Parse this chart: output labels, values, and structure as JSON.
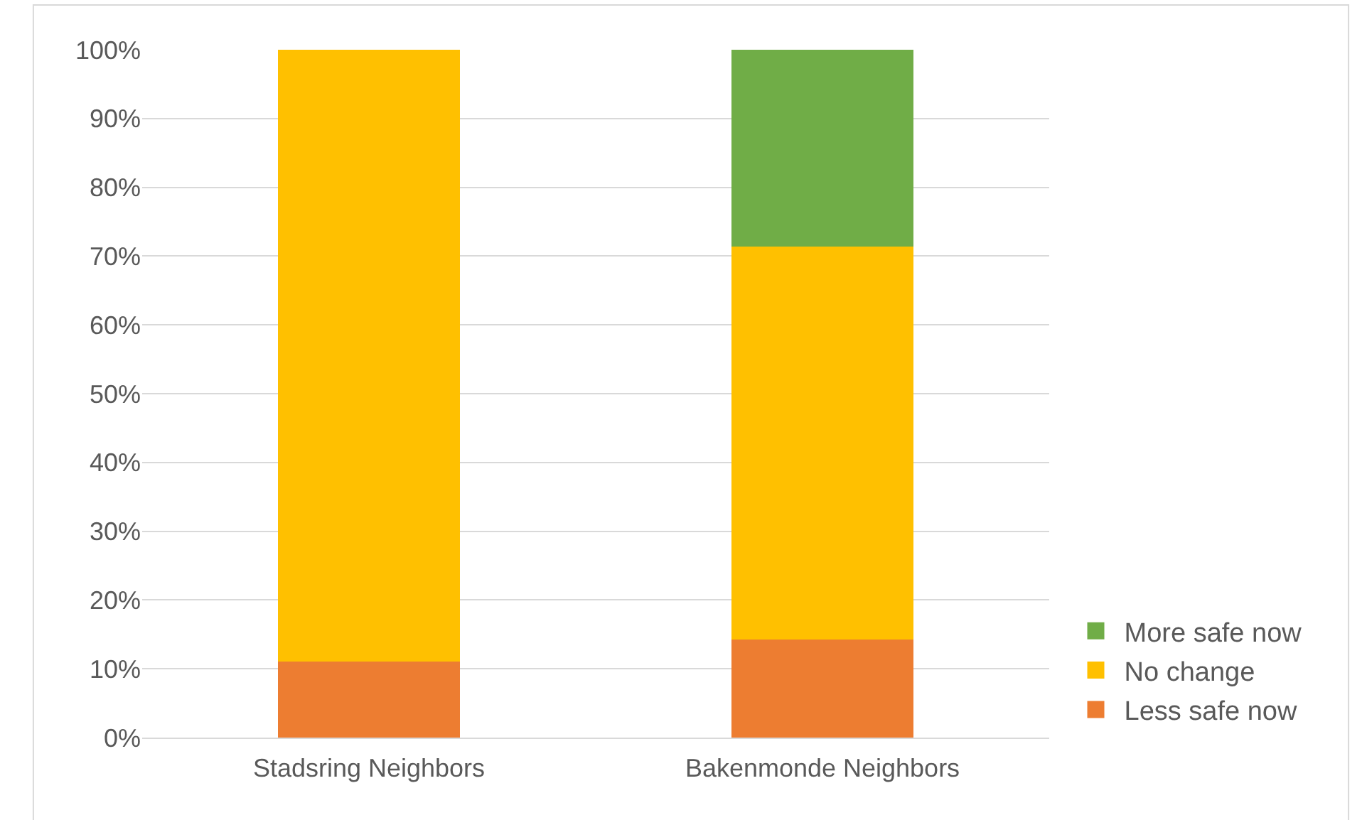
{
  "chart_data": {
    "type": "bar",
    "stacked": true,
    "categories": [
      "Stadsring Neighbors",
      "Bakenmonde Neighbors"
    ],
    "series": [
      {
        "name": "Less safe now",
        "color": "#ed7d31",
        "values": [
          11.1,
          14.3
        ]
      },
      {
        "name": "No change",
        "color": "#ffc000",
        "values": [
          88.9,
          57.1
        ]
      },
      {
        "name": "More safe now",
        "color": "#70ad47",
        "values": [
          0,
          28.6
        ]
      }
    ],
    "ylim": [
      0,
      100
    ],
    "yticks": [
      {
        "value": 0,
        "label": "0%"
      },
      {
        "value": 10,
        "label": "10%"
      },
      {
        "value": 20,
        "label": "20%"
      },
      {
        "value": 30,
        "label": "30%"
      },
      {
        "value": 40,
        "label": "40%"
      },
      {
        "value": 50,
        "label": "50%"
      },
      {
        "value": 60,
        "label": "60%"
      },
      {
        "value": 70,
        "label": "70%"
      },
      {
        "value": 80,
        "label": "80%"
      },
      {
        "value": 90,
        "label": "90%"
      },
      {
        "value": 100,
        "label": "100%"
      }
    ],
    "grid": "y",
    "legend": "right"
  }
}
